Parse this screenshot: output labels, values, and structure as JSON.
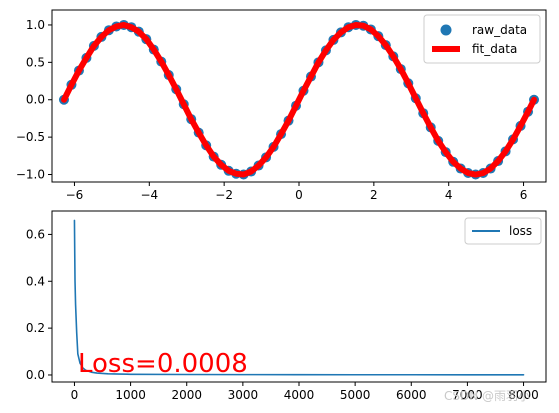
{
  "chart_data": [
    {
      "type": "scatter",
      "title": "",
      "xlabel": "",
      "ylabel": "",
      "xlim": [
        -6.6,
        6.6
      ],
      "ylim": [
        -1.1,
        1.2
      ],
      "x_ticks": [
        -6,
        -4,
        -2,
        0,
        2,
        4,
        6
      ],
      "x_tick_labels": [
        "−6",
        "−4",
        "−2",
        "0",
        "2",
        "4",
        "6"
      ],
      "y_ticks": [
        -1.0,
        -0.5,
        0.0,
        0.5,
        1.0
      ],
      "y_tick_labels": [
        "−1.0",
        "−0.5",
        "0.0",
        "0.5",
        "1.0"
      ],
      "grid": false,
      "legend": {
        "placement": "top-right",
        "entries": [
          "raw_data",
          "fit_data"
        ]
      },
      "series": [
        {
          "name": "raw_data",
          "kind": "scatter",
          "color": "#1f77b4",
          "x": [
            -6.28,
            -6.08,
            -5.88,
            -5.68,
            -5.48,
            -5.28,
            -5.08,
            -4.88,
            -4.68,
            -4.48,
            -4.28,
            -4.08,
            -3.88,
            -3.68,
            -3.48,
            -3.28,
            -3.08,
            -2.88,
            -2.68,
            -2.48,
            -2.28,
            -2.08,
            -1.88,
            -1.68,
            -1.48,
            -1.28,
            -1.08,
            -0.88,
            -0.68,
            -0.48,
            -0.28,
            -0.08,
            0.12,
            0.32,
            0.52,
            0.72,
            0.92,
            1.12,
            1.32,
            1.52,
            1.72,
            1.92,
            2.12,
            2.32,
            2.52,
            2.72,
            2.92,
            3.12,
            3.32,
            3.52,
            3.72,
            3.92,
            4.12,
            4.32,
            4.52,
            4.72,
            4.92,
            5.12,
            5.32,
            5.52,
            5.72,
            5.92,
            6.12,
            6.28
          ],
          "y": [
            0.0,
            0.2,
            0.39,
            0.56,
            0.72,
            0.84,
            0.93,
            0.98,
            1.0,
            0.97,
            0.91,
            0.81,
            0.67,
            0.51,
            0.33,
            0.14,
            -0.06,
            -0.26,
            -0.44,
            -0.61,
            -0.76,
            -0.87,
            -0.95,
            -0.99,
            -1.0,
            -0.96,
            -0.88,
            -0.77,
            -0.63,
            -0.46,
            -0.28,
            -0.08,
            0.12,
            0.31,
            0.5,
            0.66,
            0.8,
            0.9,
            0.97,
            1.0,
            0.99,
            0.94,
            0.85,
            0.73,
            0.58,
            0.41,
            0.22,
            0.02,
            -0.18,
            -0.37,
            -0.55,
            -0.7,
            -0.83,
            -0.92,
            -0.98,
            -1.0,
            -0.98,
            -0.92,
            -0.82,
            -0.69,
            -0.53,
            -0.35,
            -0.16,
            0.0
          ]
        },
        {
          "name": "fit_data",
          "kind": "line",
          "color": "#ff0000",
          "x": [
            -6.28,
            -6.08,
            -5.88,
            -5.68,
            -5.48,
            -5.28,
            -5.08,
            -4.88,
            -4.68,
            -4.48,
            -4.28,
            -4.08,
            -3.88,
            -3.68,
            -3.48,
            -3.28,
            -3.08,
            -2.88,
            -2.68,
            -2.48,
            -2.28,
            -2.08,
            -1.88,
            -1.68,
            -1.48,
            -1.28,
            -1.08,
            -0.88,
            -0.68,
            -0.48,
            -0.28,
            -0.08,
            0.12,
            0.32,
            0.52,
            0.72,
            0.92,
            1.12,
            1.32,
            1.52,
            1.72,
            1.92,
            2.12,
            2.32,
            2.52,
            2.72,
            2.92,
            3.12,
            3.32,
            3.52,
            3.72,
            3.92,
            4.12,
            4.32,
            4.52,
            4.72,
            4.92,
            5.12,
            5.32,
            5.52,
            5.72,
            5.92,
            6.12,
            6.28
          ],
          "y": [
            0.0,
            0.2,
            0.39,
            0.56,
            0.72,
            0.84,
            0.93,
            0.98,
            1.0,
            0.97,
            0.91,
            0.81,
            0.67,
            0.51,
            0.33,
            0.14,
            -0.06,
            -0.26,
            -0.44,
            -0.61,
            -0.76,
            -0.87,
            -0.95,
            -0.99,
            -1.0,
            -0.96,
            -0.88,
            -0.77,
            -0.63,
            -0.46,
            -0.28,
            -0.08,
            0.12,
            0.31,
            0.5,
            0.66,
            0.8,
            0.9,
            0.97,
            1.0,
            0.99,
            0.94,
            0.85,
            0.73,
            0.58,
            0.41,
            0.22,
            0.02,
            -0.18,
            -0.37,
            -0.55,
            -0.7,
            -0.83,
            -0.92,
            -0.98,
            -1.0,
            -0.98,
            -0.92,
            -0.82,
            -0.69,
            -0.53,
            -0.35,
            -0.16,
            0.0
          ]
        }
      ]
    },
    {
      "type": "line",
      "title": "",
      "xlabel": "",
      "ylabel": "",
      "xlim": [
        -400,
        8400
      ],
      "ylim": [
        -0.03,
        0.7
      ],
      "x_ticks": [
        0,
        1000,
        2000,
        3000,
        4000,
        5000,
        6000,
        7000,
        8000
      ],
      "x_tick_labels": [
        "0",
        "1000",
        "2000",
        "3000",
        "4000",
        "5000",
        "6000",
        "7000",
        "8000"
      ],
      "y_ticks": [
        0.0,
        0.2,
        0.4,
        0.6
      ],
      "y_tick_labels": [
        "0.0",
        "0.2",
        "0.4",
        "0.6"
      ],
      "grid": false,
      "legend": {
        "placement": "top-right",
        "entries": [
          "loss"
        ]
      },
      "annotation": "Loss=0.0008",
      "series": [
        {
          "name": "loss",
          "color": "#1f77b4",
          "x": [
            0,
            5,
            10,
            20,
            40,
            60,
            100,
            150,
            200,
            300,
            400,
            600,
            800,
            1000,
            2000,
            3000,
            4000,
            5000,
            6000,
            7000,
            8000
          ],
          "y": [
            0.66,
            0.52,
            0.4,
            0.3,
            0.18,
            0.09,
            0.05,
            0.03,
            0.02,
            0.012,
            0.008,
            0.005,
            0.004,
            0.003,
            0.002,
            0.0015,
            0.0012,
            0.001,
            0.0009,
            0.0008,
            0.0008
          ]
        }
      ]
    }
  ],
  "watermark": "CSDN @雨羽小"
}
